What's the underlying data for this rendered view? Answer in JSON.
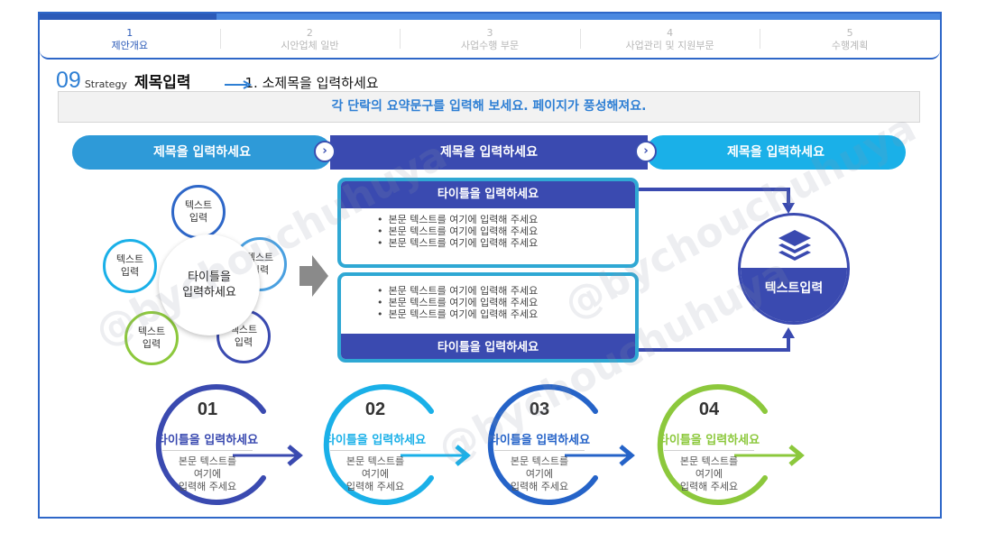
{
  "nav": {
    "items": [
      {
        "num": "1",
        "label": "제안개요",
        "active": true
      },
      {
        "num": "2",
        "label": "시안업체 일반",
        "active": false
      },
      {
        "num": "3",
        "label": "사업수행 부문",
        "active": false
      },
      {
        "num": "4",
        "label": "사업관리 및 지원부문",
        "active": false
      },
      {
        "num": "5",
        "label": "수행계획",
        "active": false
      }
    ]
  },
  "heading": {
    "number": "09",
    "strategy": "Strategy",
    "title": "제목입력",
    "subtitle": "1. 소제목을 입력하세요"
  },
  "summary": "각 단락의 요약문구를 입력해 보세요. 페이지가 풍성해져요.",
  "phases": [
    "제목을 입력하세요",
    "제목을 입력하세요",
    "제목을 입력하세요"
  ],
  "cluster": {
    "center": [
      "타이틀을",
      "입력하세요"
    ],
    "petals": [
      [
        "텍스트",
        "입력"
      ],
      [
        "텍스트",
        "입력"
      ],
      [
        "텍스트",
        "입력"
      ],
      [
        "텍스트",
        "입력"
      ],
      [
        "텍스트",
        "입력"
      ]
    ]
  },
  "boxes": [
    {
      "title": "타이틀을 입력하세요",
      "bullets": [
        "본문 텍스트를 여기에 입력해 주세요",
        "본문 텍스트를 여기에 입력해 주세요",
        "본문 텍스트를 여기에 입력해 주세요"
      ]
    },
    {
      "title": "타이틀을 입력하세요",
      "bullets": [
        "본문 텍스트를 여기에 입력해 주세요",
        "본문 텍스트를 여기에 입력해 주세요",
        "본문 텍스트를 여기에 입력해 주세요"
      ]
    }
  ],
  "result": {
    "label": "텍스트입력",
    "icon": "layers-icon"
  },
  "steps": [
    {
      "num": "01",
      "title": "타이틀을 입력하세요",
      "text": [
        "본문 텍스트를",
        "여기에",
        "입력해 주세요"
      ],
      "color": "#3a4ab0"
    },
    {
      "num": "02",
      "title": "타이틀을 입력하세요",
      "text": [
        "본문 텍스트를",
        "여기에",
        "입력해 주세요"
      ],
      "color": "#1ab0e8"
    },
    {
      "num": "03",
      "title": "타이틀을 입력하세요",
      "text": [
        "본문 텍스트를",
        "여기에",
        "입력해 주세요"
      ],
      "color": "#2563c8"
    },
    {
      "num": "04",
      "title": "타이틀을 입력하세요",
      "text": [
        "본문 텍스트를",
        "여기에",
        "입력해 주세요"
      ],
      "color": "#8cc83c"
    }
  ],
  "watermark": "@bychouchuhuya",
  "colors": {
    "navy": "#3a4ab0",
    "blue": "#2e7fd4",
    "sky": "#1ab0e8",
    "green": "#8cc83c",
    "teal": "#2fa8d4"
  }
}
